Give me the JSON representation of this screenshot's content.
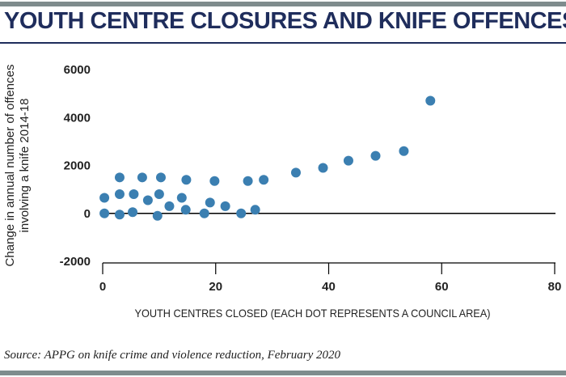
{
  "title": "YOUTH CENTRE CLOSURES AND KNIFE OFFENCES",
  "source": "Source: APPG on knife crime and violence reduction, February 2020",
  "colors": {
    "accent": "#1f2d5c",
    "dot": "#3b7fb1",
    "rule": "#7f8c8d"
  },
  "chart_data": {
    "type": "scatter",
    "title": "YOUTH CENTRE CLOSURES AND KNIFE OFFENCES",
    "xlabel": "YOUTH CENTRES CLOSED (EACH DOT REPRESENTS A COUNCIL AREA)",
    "ylabel": [
      "Change in annual number of offences",
      "involving a knife 2014-18"
    ],
    "xlim": [
      0,
      80
    ],
    "ylim": [
      -2000,
      6000
    ],
    "x_ticks": [
      0,
      20,
      40,
      60,
      80
    ],
    "y_ticks": [
      6000,
      4000,
      2000,
      0,
      -2000
    ],
    "x_tick_labels": [
      "0",
      "20",
      "40",
      "60",
      "80"
    ],
    "y_tick_labels": [
      "6000",
      "4000",
      "2000",
      "0",
      "-2000"
    ],
    "grid": false,
    "points": [
      {
        "x": 0.3,
        "y": 0
      },
      {
        "x": 0.3,
        "y": 650
      },
      {
        "x": 3,
        "y": -50
      },
      {
        "x": 3,
        "y": 800
      },
      {
        "x": 3,
        "y": 1500
      },
      {
        "x": 5.3,
        "y": 50
      },
      {
        "x": 5.5,
        "y": 800
      },
      {
        "x": 7,
        "y": 1500
      },
      {
        "x": 8,
        "y": 550
      },
      {
        "x": 9.7,
        "y": -100
      },
      {
        "x": 10,
        "y": 800
      },
      {
        "x": 10.3,
        "y": 1500
      },
      {
        "x": 11.8,
        "y": 300
      },
      {
        "x": 14,
        "y": 650
      },
      {
        "x": 14.7,
        "y": 150
      },
      {
        "x": 14.8,
        "y": 1400
      },
      {
        "x": 18,
        "y": 0
      },
      {
        "x": 19,
        "y": 450
      },
      {
        "x": 19.8,
        "y": 1350
      },
      {
        "x": 21.7,
        "y": 300
      },
      {
        "x": 24.5,
        "y": 0
      },
      {
        "x": 25.7,
        "y": 1350
      },
      {
        "x": 27,
        "y": 150
      },
      {
        "x": 28.5,
        "y": 1400
      },
      {
        "x": 34.2,
        "y": 1700
      },
      {
        "x": 39,
        "y": 1900
      },
      {
        "x": 43.5,
        "y": 2200
      },
      {
        "x": 48.3,
        "y": 2400
      },
      {
        "x": 53.3,
        "y": 2600
      },
      {
        "x": 58,
        "y": 4700
      }
    ]
  }
}
